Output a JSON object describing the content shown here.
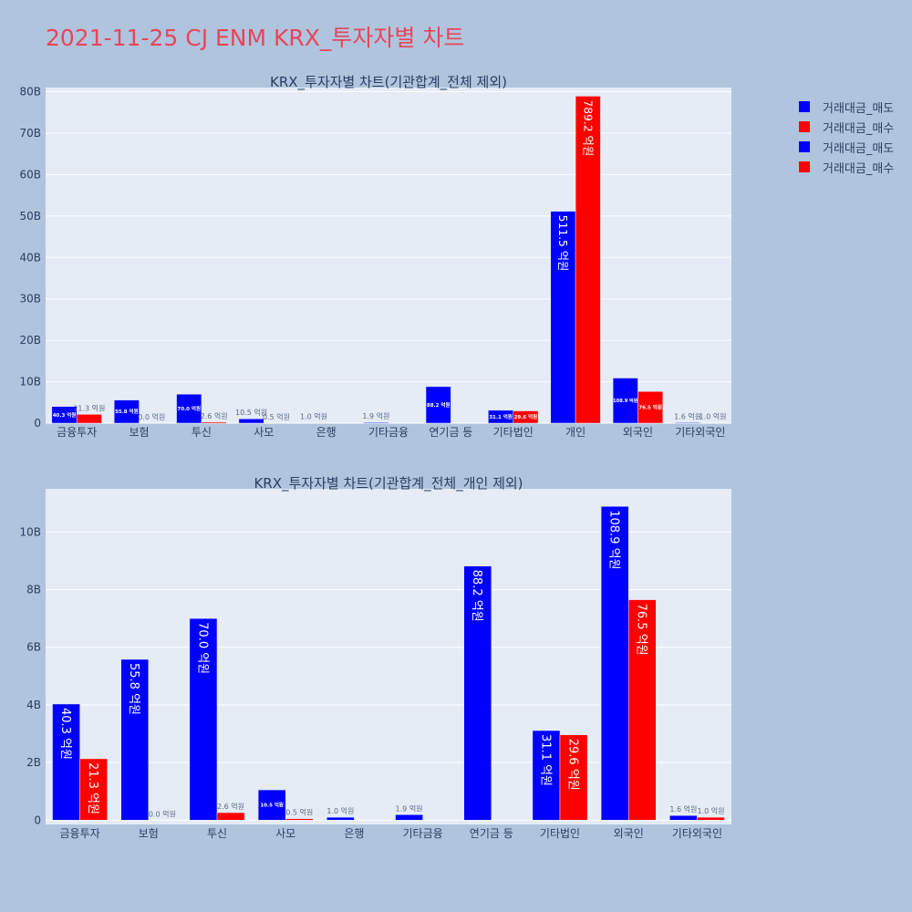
{
  "title": "2021-11-25 CJ ENM KRX_투자자별 차트",
  "legend": [
    {
      "label": "거래대금_매도",
      "color": "#0000ff"
    },
    {
      "label": "거래대금_매수",
      "color": "#ff0000"
    },
    {
      "label": "거래대금_매도",
      "color": "#0000ff"
    },
    {
      "label": "거래대금_매수",
      "color": "#ff0000"
    }
  ],
  "chart_data": [
    {
      "type": "bar",
      "title": "KRX_투자자별 차트(기관합계_전체 제외)",
      "categories": [
        "금융투자",
        "보험",
        "투신",
        "사모",
        "은행",
        "기타금융",
        "연기금 등",
        "기타법인",
        "개인",
        "외국인",
        "기타외국인"
      ],
      "ytick_values": [
        0,
        10,
        20,
        30,
        40,
        50,
        60,
        70,
        80
      ],
      "ytick_labels": [
        "0",
        "10B",
        "20B",
        "30B",
        "40B",
        "50B",
        "60B",
        "70B",
        "80B"
      ],
      "ylim": [
        0,
        81
      ],
      "series": [
        {
          "name": "거래대금_매도",
          "color": "#0000ff",
          "values": [
            4.03,
            5.58,
            7.0,
            1.05,
            0.1,
            0.19,
            8.82,
            3.11,
            51.15,
            10.89,
            0.16
          ],
          "labels": [
            "40.3 억원",
            "55.8 억원",
            "70.0 억원",
            "10.5 억원",
            "1.0 억원",
            "1.9 억원",
            "88.2 억원",
            "31.1 억원",
            "511.5 억원",
            "108.9 억원",
            "1.6 억원"
          ]
        },
        {
          "name": "거래대금_매수",
          "color": "#ff0000",
          "values": [
            2.13,
            0.0,
            0.26,
            0.05,
            0,
            0,
            0,
            2.96,
            78.92,
            7.65,
            0.1
          ],
          "labels": [
            "21.3 억원",
            "0.0 억원",
            "2.6 억원",
            "0.5 억원",
            "",
            "",
            "",
            "29.6 억원",
            "789.2 억원",
            "76.5 억원",
            "1.0 억원"
          ]
        }
      ],
      "grid": true
    },
    {
      "type": "bar",
      "title": "KRX_투자자별 차트(기관합계_전체_개인 제외)",
      "categories": [
        "금융투자",
        "보험",
        "투신",
        "사모",
        "은행",
        "기타금융",
        "연기금 등",
        "기타법인",
        "외국인",
        "기타외국인"
      ],
      "ytick_values": [
        0,
        2,
        4,
        6,
        8,
        10
      ],
      "ytick_labels": [
        "0",
        "2B",
        "4B",
        "6B",
        "8B",
        "10B"
      ],
      "ylim": [
        -0.15,
        11.5
      ],
      "series": [
        {
          "name": "거래대금_매도",
          "color": "#0000ff",
          "values": [
            4.03,
            5.58,
            7.0,
            1.05,
            0.1,
            0.19,
            8.82,
            3.11,
            10.89,
            0.16
          ],
          "labels": [
            "40.3 억원",
            "55.8 억원",
            "70.0 억원",
            "10.5 억원",
            "1.0 억원",
            "1.9 억원",
            "88.2 억원",
            "31.1 억원",
            "108.9 억원",
            "1.6 억원"
          ]
        },
        {
          "name": "거래대금_매수",
          "color": "#ff0000",
          "values": [
            2.13,
            0.0,
            0.26,
            0.05,
            0,
            0,
            0,
            2.96,
            7.65,
            0.1
          ],
          "labels": [
            "21.3 억원",
            "0.0 억원",
            "2.6 억원",
            "0.5 억원",
            "",
            "",
            "",
            "29.6 억원",
            "76.5 억원",
            "1.0 억원"
          ]
        }
      ],
      "grid": true
    }
  ]
}
